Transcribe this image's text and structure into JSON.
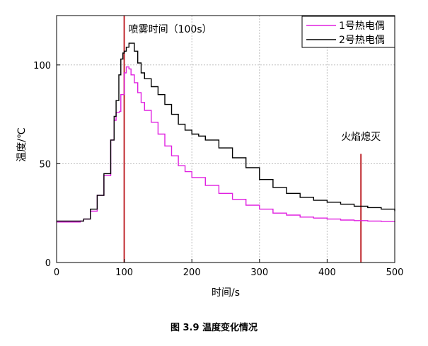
{
  "chart_data": {
    "type": "line",
    "xlabel": "时间/s",
    "ylabel": "温度/℃",
    "xlim": [
      0,
      500
    ],
    "ylim": [
      0,
      125
    ],
    "xticks": [
      0,
      100,
      200,
      300,
      400,
      500
    ],
    "yticks": [
      0,
      50,
      100
    ],
    "grid": true,
    "legend_position": "top-right",
    "caption": "图 3.9  温度变化情况",
    "series": [
      {
        "name": "1号热电偶",
        "color": "#e020e0",
        "points": [
          [
            0,
            20.5
          ],
          [
            20,
            20.5
          ],
          [
            35,
            21
          ],
          [
            40,
            22
          ],
          [
            50,
            26
          ],
          [
            60,
            34
          ],
          [
            70,
            44
          ],
          [
            80,
            62
          ],
          [
            85,
            72
          ],
          [
            88,
            76
          ],
          [
            93,
            76.5
          ],
          [
            95,
            85
          ],
          [
            100,
            96
          ],
          [
            103,
            99
          ],
          [
            107,
            98
          ],
          [
            110,
            95
          ],
          [
            115,
            91
          ],
          [
            120,
            86
          ],
          [
            125,
            81
          ],
          [
            130,
            77
          ],
          [
            140,
            71
          ],
          [
            150,
            65
          ],
          [
            160,
            59
          ],
          [
            170,
            54
          ],
          [
            180,
            49
          ],
          [
            190,
            46
          ],
          [
            200,
            43
          ],
          [
            220,
            39
          ],
          [
            240,
            35
          ],
          [
            260,
            32
          ],
          [
            280,
            29
          ],
          [
            300,
            27
          ],
          [
            320,
            25
          ],
          [
            340,
            24
          ],
          [
            360,
            23
          ],
          [
            380,
            22.5
          ],
          [
            400,
            22
          ],
          [
            420,
            21.5
          ],
          [
            440,
            21.2
          ],
          [
            460,
            21
          ],
          [
            480,
            20.8
          ],
          [
            500,
            20.5
          ]
        ]
      },
      {
        "name": "2号热电偶",
        "color": "#000000",
        "points": [
          [
            0,
            21
          ],
          [
            20,
            21
          ],
          [
            35,
            21
          ],
          [
            40,
            22
          ],
          [
            50,
            27
          ],
          [
            60,
            34
          ],
          [
            70,
            45
          ],
          [
            80,
            62
          ],
          [
            85,
            74
          ],
          [
            88,
            82
          ],
          [
            92,
            95
          ],
          [
            95,
            103
          ],
          [
            98,
            106
          ],
          [
            100,
            107
          ],
          [
            103,
            109
          ],
          [
            107,
            111
          ],
          [
            112,
            111
          ],
          [
            115,
            107
          ],
          [
            120,
            101
          ],
          [
            125,
            96
          ],
          [
            130,
            93
          ],
          [
            140,
            89
          ],
          [
            150,
            85
          ],
          [
            160,
            80
          ],
          [
            170,
            75
          ],
          [
            180,
            70
          ],
          [
            190,
            67
          ],
          [
            200,
            65
          ],
          [
            210,
            64
          ],
          [
            220,
            62
          ],
          [
            240,
            58
          ],
          [
            260,
            53
          ],
          [
            280,
            48
          ],
          [
            300,
            42
          ],
          [
            320,
            38
          ],
          [
            340,
            35
          ],
          [
            360,
            33
          ],
          [
            380,
            31.5
          ],
          [
            400,
            30.5
          ],
          [
            420,
            29.5
          ],
          [
            440,
            28.5
          ],
          [
            460,
            27.8
          ],
          [
            480,
            27
          ],
          [
            500,
            26
          ]
        ]
      }
    ],
    "annotations": [
      {
        "x": 100,
        "label": "喷雾时间（100s）",
        "color": "#c0282e"
      },
      {
        "x": 450,
        "label": "火焰熄灭",
        "color": "#c0282e"
      }
    ]
  }
}
